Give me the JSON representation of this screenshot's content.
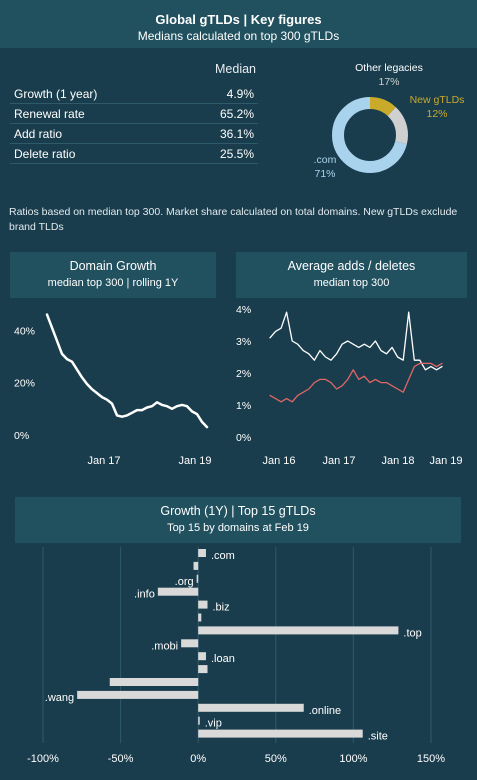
{
  "header": {
    "title": "Global gTLDs | Key figures",
    "subtitle": "Medians calculated on top 300 gTLDs"
  },
  "key_figures": {
    "column_header": "Median",
    "rows": [
      {
        "label": "Growth (1 year)",
        "value": "4.9%"
      },
      {
        "label": "Renewal rate",
        "value": "65.2%"
      },
      {
        "label": "Add ratio",
        "value": "36.1%"
      },
      {
        "label": "Delete ratio",
        "value": "25.5%"
      }
    ]
  },
  "note": "Ratios based on median top 300. Market share calculated on total domains.  New gTLDs exclude brand TLDs",
  "colors": {
    "background": "#1a3d4d",
    "panel_header": "#21505f",
    "com": "#a9d3ec",
    "legacy": "#d0d0d0",
    "new_gtlds": "#c9aa2a",
    "deletes": "#e06666",
    "lines": "#ffffff",
    "bars": "#d9d9d9"
  },
  "chart_data": [
    {
      "type": "pie",
      "labels": [
        ".com",
        "Other legacies",
        "New gTLDs"
      ],
      "values": [
        71,
        17,
        12
      ],
      "label_values": [
        "71%",
        "17%",
        "12%"
      ]
    },
    {
      "type": "line",
      "title": "Domain Growth",
      "subtitle": "median top 300 | rolling 1Y",
      "x_ticks": [
        "Jan 17",
        "Jan 19"
      ],
      "y_ticks": [
        "40%",
        "20%",
        "0%"
      ],
      "ylim": [
        0,
        47
      ],
      "series": [
        {
          "values": [
            46,
            41,
            36,
            31,
            29,
            28,
            25,
            22,
            19.5,
            17.5,
            16,
            14.5,
            13.5,
            12,
            7.5,
            7,
            7.5,
            8.5,
            9.5,
            9.5,
            10.5,
            11,
            12.5,
            11.5,
            11,
            10,
            11,
            11.5,
            11,
            9,
            8,
            5,
            3
          ]
        }
      ]
    },
    {
      "type": "line",
      "title": "Average adds / deletes",
      "subtitle": "median top 300",
      "x_ticks": [
        "Jan 16",
        "Jan 17",
        "Jan 18",
        "Jan 19"
      ],
      "y_ticks": [
        "4%",
        "3%",
        "2%",
        "1%",
        "0%"
      ],
      "ylim": [
        0,
        4
      ],
      "series": [
        {
          "name": "adds",
          "values": [
            3.1,
            3.3,
            3.4,
            3.9,
            3.0,
            2.9,
            2.7,
            2.6,
            2.4,
            2.7,
            2.5,
            2.4,
            2.6,
            2.9,
            3.0,
            2.9,
            2.8,
            2.9,
            2.8,
            3.0,
            2.7,
            2.6,
            2.8,
            2.5,
            2.4,
            3.9,
            2.4,
            2.4,
            2.1,
            2.2,
            2.1,
            2.2
          ]
        },
        {
          "name": "deletes",
          "values": [
            1.3,
            1.2,
            1.1,
            1.2,
            1.1,
            1.3,
            1.4,
            1.5,
            1.7,
            1.8,
            1.8,
            1.7,
            1.5,
            1.6,
            1.8,
            2.1,
            1.8,
            1.9,
            1.7,
            1.8,
            1.7,
            1.7,
            1.6,
            1.5,
            1.4,
            1.8,
            2.2,
            2.3,
            2.3,
            2.3,
            2.2,
            2.3
          ]
        }
      ]
    },
    {
      "type": "bar",
      "orientation": "horizontal",
      "title": "Growth (1Y) | Top 15 gTLDs",
      "subtitle": "Top 15 by domains at Feb 19",
      "categories": [
        ".com",
        "",
        ".org",
        ".info",
        ".biz",
        "",
        ".top",
        ".mobi",
        ".loan",
        "",
        "",
        ".wang",
        ".online",
        ".vip",
        ".site"
      ],
      "values": [
        5,
        -3,
        -1,
        -26,
        6,
        2,
        129,
        -11,
        5,
        6,
        -57,
        -78,
        68,
        1,
        106
      ],
      "xlim": [
        -100,
        150
      ],
      "x_ticks": [
        "-100%",
        "-50%",
        "0%",
        "50%",
        "100%",
        "150%"
      ],
      "x_tick_values": [
        -100,
        -50,
        0,
        50,
        100,
        150
      ]
    }
  ]
}
